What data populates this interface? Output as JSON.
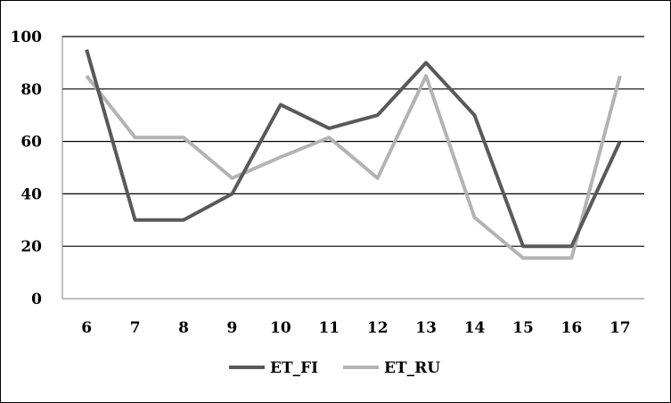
{
  "chart_data": {
    "type": "line",
    "title": "",
    "xlabel": "",
    "ylabel": "",
    "x": [
      6,
      7,
      8,
      9,
      10,
      11,
      12,
      13,
      14,
      15,
      16,
      17
    ],
    "x_tick_labels": [
      "6",
      "7",
      "8",
      "9",
      "10",
      "11",
      "12",
      "13",
      "14",
      "15",
      "16",
      "17"
    ],
    "ylim": [
      0,
      100
    ],
    "y_ticks": [
      0,
      20,
      40,
      60,
      80,
      100
    ],
    "y_tick_labels": [
      "0",
      "20",
      "40",
      "60",
      "80",
      "100"
    ],
    "grid": "horizontal",
    "legend": "bottom",
    "series": [
      {
        "name": "ET_FI",
        "color": "#595959",
        "values": [
          95,
          30,
          30,
          40,
          74,
          65,
          70,
          90,
          70,
          20,
          20,
          60
        ]
      },
      {
        "name": "ET_RU",
        "color": "#b3b3b3",
        "values": [
          85,
          61.5,
          61.5,
          46,
          54,
          61.5,
          46,
          85,
          31,
          15.5,
          15.5,
          85
        ]
      }
    ]
  }
}
